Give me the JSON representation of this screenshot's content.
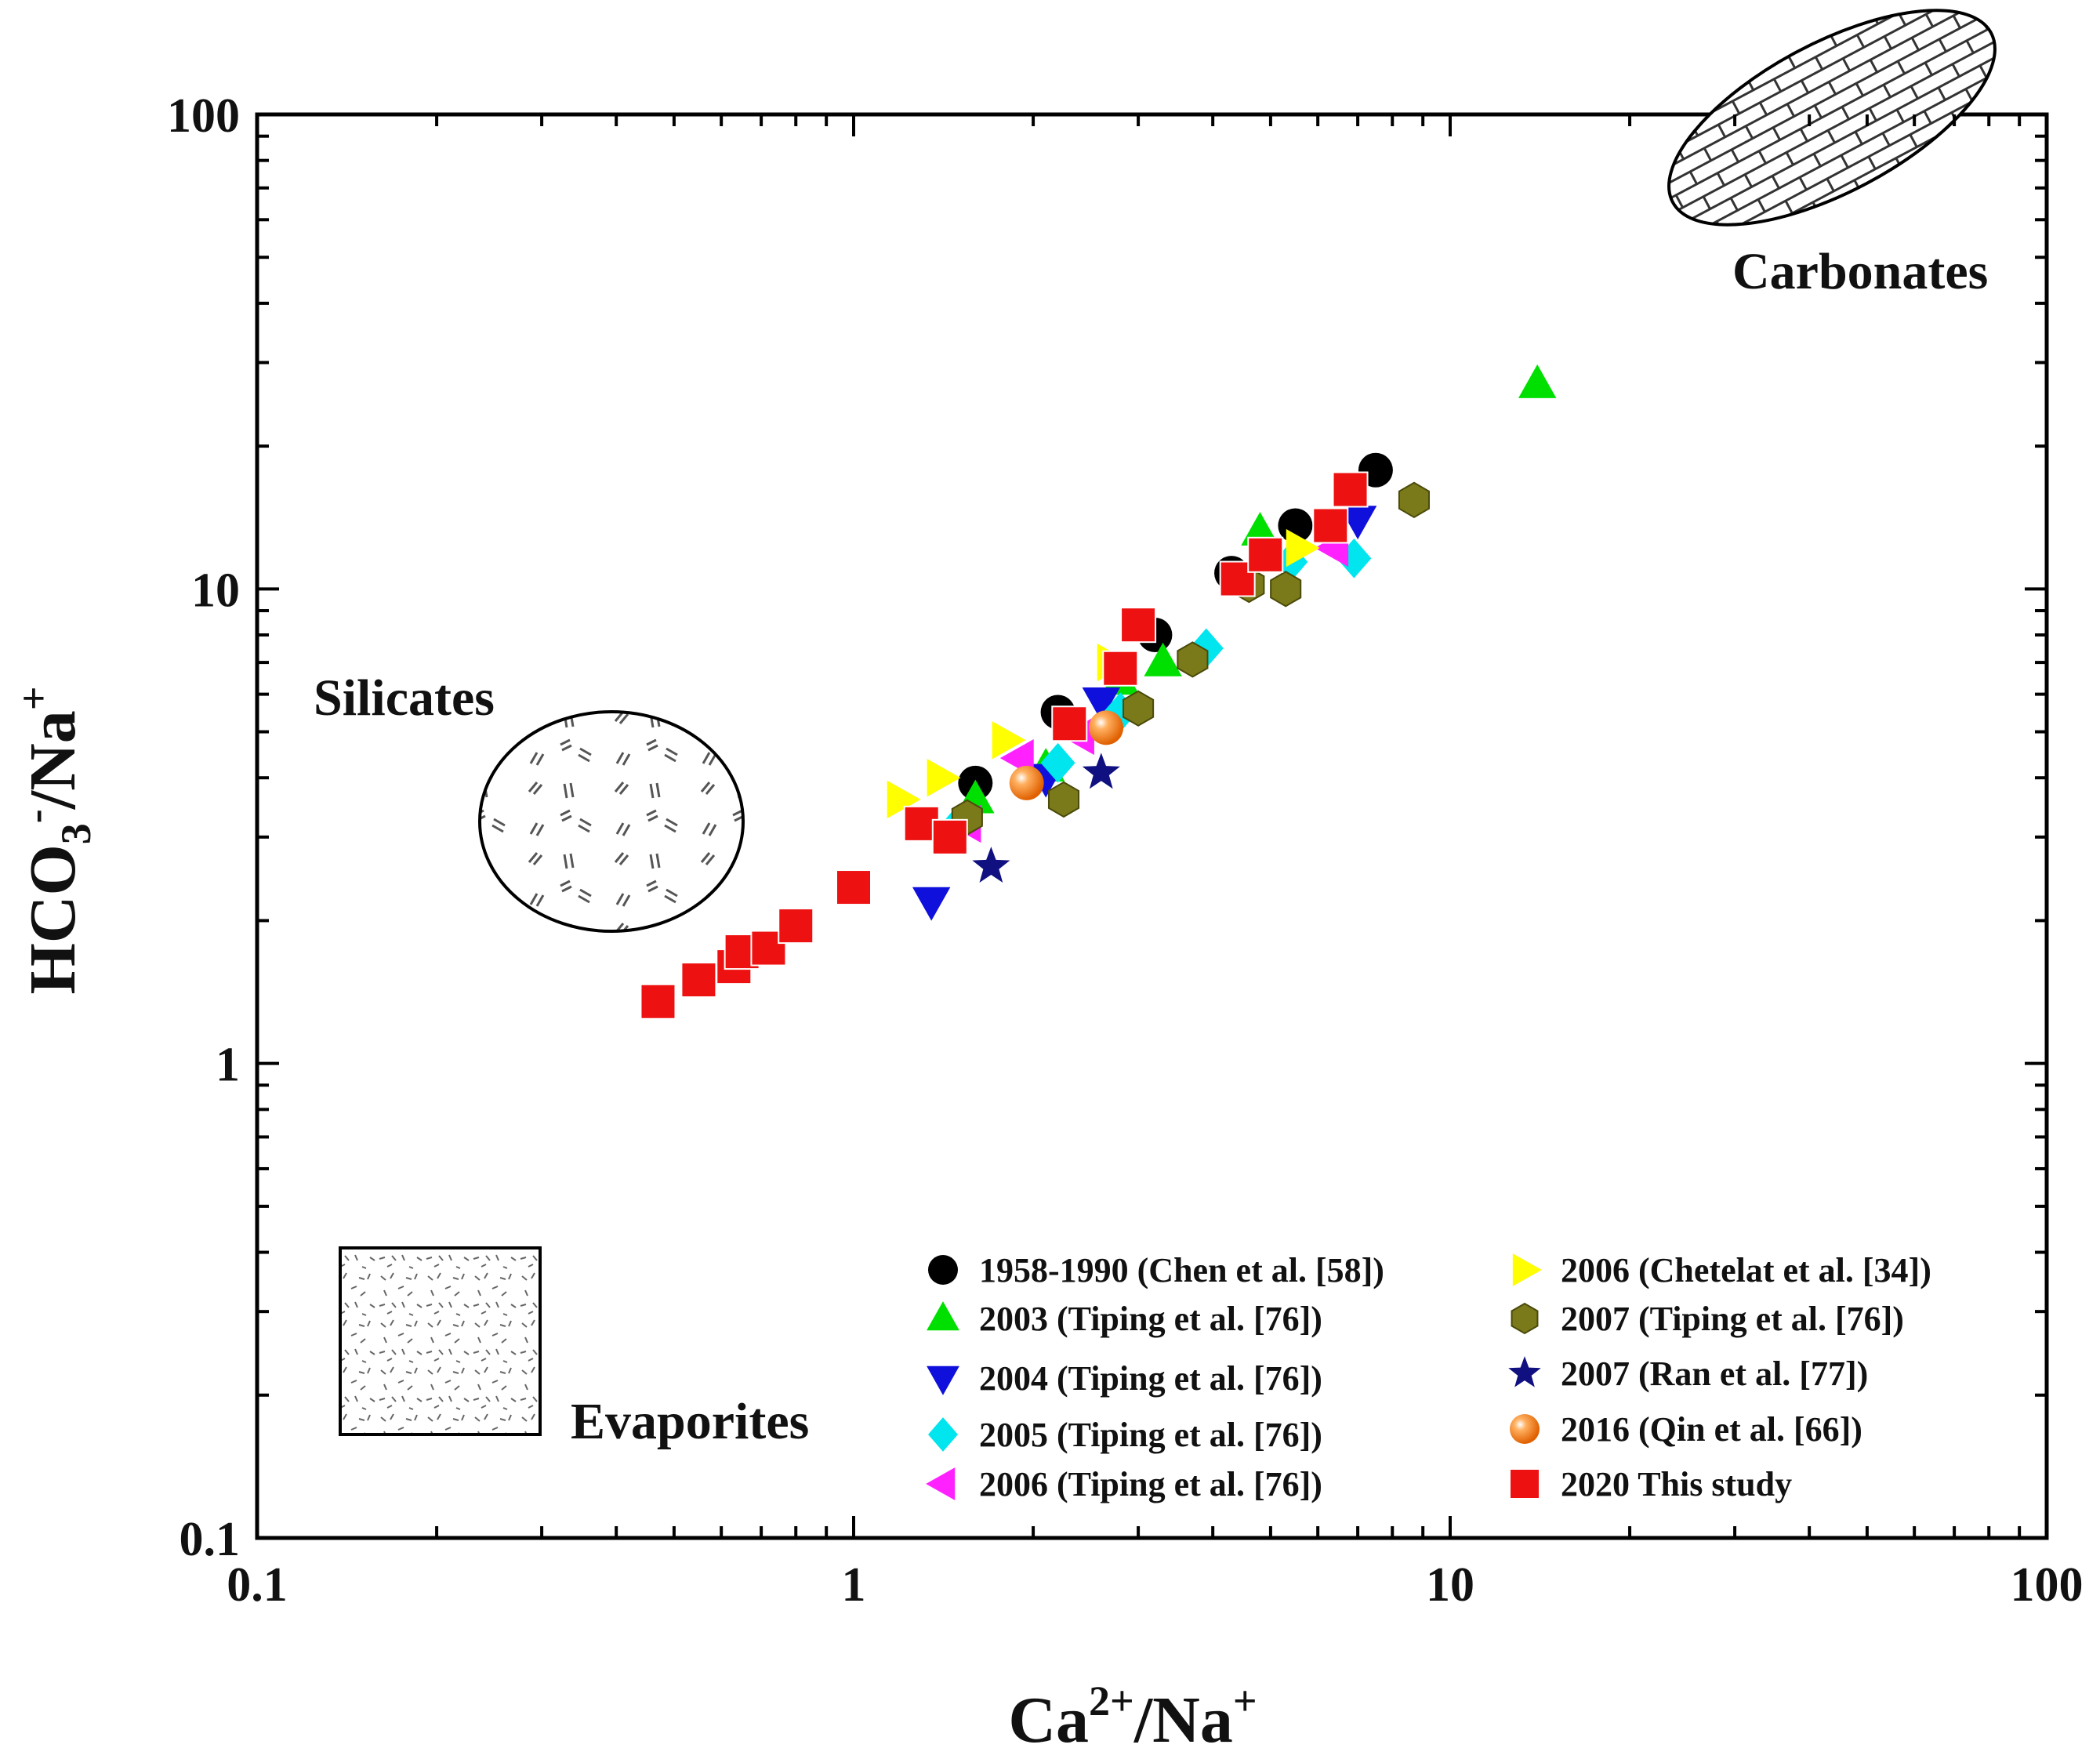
{
  "chart_data": {
    "type": "scatter",
    "xscale": "log",
    "yscale": "log",
    "xlim": [
      0.1,
      100
    ],
    "ylim": [
      0.1,
      100
    ],
    "xlabel": {
      "base": "Ca",
      "sup": "2+",
      "tail": "/Na",
      "tail_sup": "+"
    },
    "ylabel": {
      "base": "HCO",
      "sub": "3",
      "sup": "-",
      "tail": "/Na",
      "tail_sup": "+"
    },
    "x_ticks": [
      {
        "value": 0.1,
        "label": "0.1"
      },
      {
        "value": 1,
        "label": "1"
      },
      {
        "value": 10,
        "label": "10"
      },
      {
        "value": 100,
        "label": "100"
      }
    ],
    "y_ticks": [
      {
        "value": 0.1,
        "label": "0.1"
      },
      {
        "value": 1,
        "label": "1"
      },
      {
        "value": 10,
        "label": "10"
      },
      {
        "value": 100,
        "label": "100"
      }
    ],
    "regions": {
      "silicates": "Silicates",
      "carbonates": "Carbonates",
      "evaporites": "Evaporites"
    },
    "series": [
      {
        "name": "1958-1990  (Chen et al. [58])",
        "marker": "circle",
        "color": "#000000",
        "points": [
          [
            1.6,
            3.9
          ],
          [
            2.2,
            5.5
          ],
          [
            3.2,
            8.0
          ],
          [
            4.3,
            10.8
          ],
          [
            5.5,
            13.6
          ],
          [
            7.5,
            17.8
          ]
        ]
      },
      {
        "name": "2003 (Tiping et al. [76])",
        "marker": "triangle-up",
        "color": "#00e000",
        "points": [
          [
            1.6,
            3.6
          ],
          [
            2.1,
            4.2
          ],
          [
            2.8,
            6.4
          ],
          [
            3.3,
            7.0
          ],
          [
            4.8,
            13.2
          ],
          [
            14,
            27
          ]
        ]
      },
      {
        "name": "2004 (Tiping et al. [76])",
        "marker": "triangle-down",
        "color": "#1010dd",
        "points": [
          [
            1.35,
            2.2
          ],
          [
            2.1,
            4.0
          ],
          [
            2.6,
            5.8
          ],
          [
            4.5,
            10.5
          ],
          [
            7.0,
            14.0
          ]
        ]
      },
      {
        "name": "2005 (Tiping et al. [76])",
        "marker": "diamond",
        "color": "#00e5ee",
        "points": [
          [
            1.5,
            3.2
          ],
          [
            2.2,
            4.3
          ],
          [
            2.8,
            5.5
          ],
          [
            3.9,
            7.5
          ],
          [
            5.4,
            11.4
          ],
          [
            6.9,
            11.6
          ]
        ]
      },
      {
        "name": "2006 (Tiping et al. [76])",
        "marker": "triangle-left",
        "color": "#ff22ff",
        "points": [
          [
            1.55,
            3.2
          ],
          [
            1.9,
            4.4
          ],
          [
            2.4,
            4.9
          ],
          [
            6.4,
            12.2
          ]
        ]
      },
      {
        "name": "2006 (Chetelat et al. [34])",
        "marker": "triangle-right",
        "color": "#ffff00",
        "points": [
          [
            1.2,
            3.6
          ],
          [
            1.4,
            4.0
          ],
          [
            1.8,
            4.8
          ],
          [
            2.7,
            7.0
          ],
          [
            5.6,
            12.2
          ]
        ]
      },
      {
        "name": "2007 (Tiping et al. [76])",
        "marker": "hexagon",
        "color": "#7a7a1a",
        "points": [
          [
            1.55,
            3.3
          ],
          [
            2.25,
            3.6
          ],
          [
            3.0,
            5.6
          ],
          [
            3.7,
            7.1
          ],
          [
            4.6,
            10.2
          ],
          [
            5.3,
            10.0
          ],
          [
            8.7,
            15.4
          ]
        ]
      },
      {
        "name": "2007 (Ran et al. [77])",
        "marker": "star",
        "color": "#101080",
        "points": [
          [
            1.7,
            2.6
          ],
          [
            2.6,
            4.1
          ]
        ]
      },
      {
        "name": "2016 (Qin et al. [66])",
        "marker": "sphere",
        "color": "#ff8c1a",
        "points": [
          [
            1.95,
            3.9
          ],
          [
            2.65,
            5.1
          ]
        ]
      },
      {
        "name": "2020 This study",
        "marker": "square",
        "color": "#ee1111",
        "points": [
          [
            0.47,
            1.35
          ],
          [
            0.55,
            1.5
          ],
          [
            0.63,
            1.6
          ],
          [
            0.65,
            1.72
          ],
          [
            0.72,
            1.75
          ],
          [
            0.8,
            1.95
          ],
          [
            1.0,
            2.35
          ],
          [
            1.3,
            3.2
          ],
          [
            1.45,
            3.0
          ],
          [
            2.3,
            5.2
          ],
          [
            2.8,
            6.8
          ],
          [
            3.0,
            8.4
          ],
          [
            4.4,
            10.5
          ],
          [
            4.9,
            11.8
          ],
          [
            6.3,
            13.6
          ],
          [
            6.8,
            16.2
          ]
        ]
      }
    ]
  }
}
